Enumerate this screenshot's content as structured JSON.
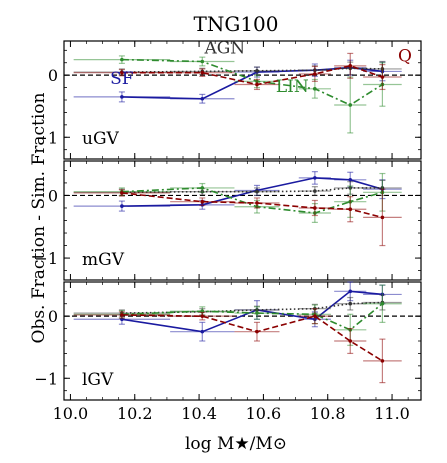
{
  "chart_data": {
    "type": "line",
    "title": "TNG100",
    "xlabel": "log M★/M⊙",
    "ylabel": "Obs. Fraction - Sim. Fraction",
    "xlim": [
      9.98,
      11.09
    ],
    "ylim": [
      -1.35,
      0.55
    ],
    "x_ticks": [
      10.0,
      10.2,
      10.4,
      10.6,
      10.8,
      11.0
    ],
    "x_tick_labels": [
      "10.0",
      "10.2",
      "10.4",
      "10.6",
      "10.8",
      "11.0"
    ],
    "y_ticks": [
      -1,
      0
    ],
    "y_tick_labels": [
      "−1",
      "0"
    ],
    "reference_line": 0,
    "colors": {
      "SF": "#1a1aa0",
      "AGN": "#333333",
      "LIN": "#2e8b2e",
      "Q": "#8b0000"
    },
    "line_styles": {
      "SF": "solid",
      "AGN": "dotted",
      "LIN": "dashdot",
      "Q": "dashed"
    },
    "panels": [
      {
        "label": "uGV",
        "series_annotations": [
          {
            "name": "AGN",
            "text": "AGN",
            "x": 10.48,
            "y": 0.35
          },
          {
            "name": "SF",
            "text": "SF",
            "x": 10.16,
            "y": -0.14
          },
          {
            "name": "LIN",
            "text": "LIN",
            "x": 10.69,
            "y": -0.27
          },
          {
            "name": "Q",
            "text": "Q",
            "x": 11.04,
            "y": 0.22
          }
        ],
        "series": [
          {
            "name": "SF",
            "x": [
              10.16,
              10.41,
              10.58,
              10.76,
              10.87,
              10.97
            ],
            "y": [
              -0.35,
              -0.38,
              0.05,
              0.08,
              0.12,
              0.06
            ],
            "xerr": [
              0.15,
              0.1,
              0.07,
              0.05,
              0.05,
              0.06
            ],
            "yerr": [
              0.08,
              0.07,
              0.08,
              0.1,
              0.12,
              0.15
            ]
          },
          {
            "name": "AGN",
            "x": [
              10.16,
              10.41,
              10.58,
              10.76,
              10.87,
              10.97
            ],
            "y": [
              0.05,
              0.06,
              0.07,
              0.08,
              0.11,
              0.1
            ],
            "xerr": [
              0.15,
              0.1,
              0.07,
              0.05,
              0.05,
              0.06
            ],
            "yerr": [
              0.05,
              0.05,
              0.06,
              0.07,
              0.1,
              0.12
            ]
          },
          {
            "name": "LIN",
            "x": [
              10.16,
              10.41,
              10.58,
              10.76,
              10.87,
              10.97
            ],
            "y": [
              0.25,
              0.22,
              -0.1,
              -0.22,
              -0.48,
              -0.15
            ],
            "xerr": [
              0.15,
              0.1,
              0.07,
              0.05,
              0.05,
              0.06
            ],
            "yerr": [
              0.06,
              0.07,
              0.1,
              0.15,
              0.45,
              0.35
            ]
          },
          {
            "name": "Q",
            "x": [
              10.16,
              10.41,
              10.58,
              10.76,
              10.87,
              10.97
            ],
            "y": [
              0.04,
              0.04,
              -0.15,
              0.02,
              0.15,
              -0.03
            ],
            "xerr": [
              0.15,
              0.1,
              0.07,
              0.05,
              0.05,
              0.06
            ],
            "yerr": [
              0.05,
              0.06,
              0.08,
              0.12,
              0.2,
              0.2
            ]
          }
        ]
      },
      {
        "label": "mGV",
        "series": [
          {
            "name": "SF",
            "x": [
              10.16,
              10.41,
              10.58,
              10.76,
              10.87,
              10.97
            ],
            "y": [
              -0.17,
              -0.15,
              0.08,
              0.28,
              0.25,
              0.1
            ],
            "xerr": [
              0.15,
              0.1,
              0.07,
              0.05,
              0.05,
              0.06
            ],
            "yerr": [
              0.08,
              0.07,
              0.08,
              0.1,
              0.12,
              0.15
            ]
          },
          {
            "name": "AGN",
            "x": [
              10.16,
              10.41,
              10.58,
              10.76,
              10.87,
              10.97
            ],
            "y": [
              0.05,
              0.06,
              0.06,
              0.07,
              0.12,
              0.12
            ],
            "xerr": [
              0.15,
              0.1,
              0.07,
              0.05,
              0.05,
              0.06
            ],
            "yerr": [
              0.05,
              0.05,
              0.06,
              0.07,
              0.1,
              0.12
            ]
          },
          {
            "name": "LIN",
            "x": [
              10.16,
              10.41,
              10.58,
              10.76,
              10.87,
              10.97
            ],
            "y": [
              0.06,
              0.12,
              -0.18,
              -0.28,
              -0.1,
              0.05
            ],
            "xerr": [
              0.15,
              0.1,
              0.07,
              0.05,
              0.05,
              0.06
            ],
            "yerr": [
              0.06,
              0.07,
              0.1,
              0.15,
              0.25,
              0.3
            ]
          },
          {
            "name": "Q",
            "x": [
              10.16,
              10.41,
              10.58,
              10.76,
              10.87,
              10.97
            ],
            "y": [
              0.04,
              -0.1,
              -0.12,
              -0.2,
              -0.22,
              -0.35
            ],
            "xerr": [
              0.15,
              0.1,
              0.07,
              0.05,
              0.05,
              0.06
            ],
            "yerr": [
              0.05,
              0.06,
              0.08,
              0.12,
              0.2,
              0.45
            ]
          }
        ]
      },
      {
        "label": "lGV",
        "series": [
          {
            "name": "SF",
            "x": [
              10.16,
              10.41,
              10.58,
              10.76,
              10.87,
              10.97
            ],
            "y": [
              -0.05,
              -0.25,
              0.1,
              -0.05,
              0.4,
              0.35
            ],
            "xerr": [
              0.15,
              0.1,
              0.07,
              0.05,
              0.05,
              0.06
            ],
            "yerr": [
              0.08,
              0.15,
              0.15,
              0.12,
              0.15,
              0.15
            ]
          },
          {
            "name": "AGN",
            "x": [
              10.16,
              10.41,
              10.58,
              10.76,
              10.87,
              10.97
            ],
            "y": [
              0.05,
              0.07,
              0.1,
              0.12,
              0.2,
              0.22
            ],
            "xerr": [
              0.15,
              0.1,
              0.07,
              0.05,
              0.05,
              0.06
            ],
            "yerr": [
              0.05,
              0.05,
              0.06,
              0.07,
              0.1,
              0.12
            ]
          },
          {
            "name": "LIN",
            "x": [
              10.16,
              10.41,
              10.58,
              10.76,
              10.87,
              10.97
            ],
            "y": [
              0.03,
              0.08,
              0.05,
              0.03,
              -0.22,
              0.2
            ],
            "xerr": [
              0.15,
              0.1,
              0.07,
              0.05,
              0.05,
              0.06
            ],
            "yerr": [
              0.06,
              0.07,
              0.1,
              0.15,
              0.25,
              0.3
            ]
          },
          {
            "name": "Q",
            "x": [
              10.16,
              10.41,
              10.58,
              10.76,
              10.87,
              10.97
            ],
            "y": [
              0.02,
              0.0,
              -0.25,
              0.0,
              -0.4,
              -0.72
            ],
            "xerr": [
              0.15,
              0.1,
              0.07,
              0.05,
              0.05,
              0.06
            ],
            "yerr": [
              0.05,
              0.06,
              0.15,
              0.12,
              0.2,
              0.35
            ]
          }
        ]
      }
    ]
  }
}
